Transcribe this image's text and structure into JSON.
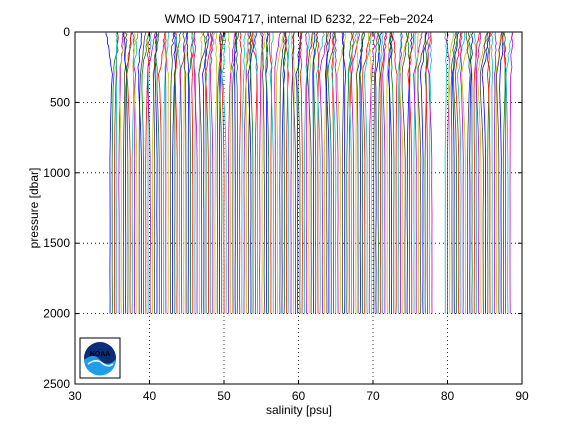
{
  "chart_data": {
    "type": "line",
    "title": "WMO ID 5904717, internal ID 6232, 22−Feb−2024",
    "xlabel": "salinity [psu]",
    "ylabel": "pressure [dbar]",
    "xlim": [
      30,
      90
    ],
    "ylim": [
      2500,
      0
    ],
    "x_ticks": [
      30,
      40,
      50,
      60,
      70,
      80,
      90
    ],
    "y_ticks": [
      0,
      500,
      1000,
      1500,
      2000,
      2500
    ],
    "y_reversed": true,
    "grid": true,
    "legend": "none",
    "profile_count": 180,
    "profile_spacing_psu": 0.3,
    "first_profile_deep_salinity": 34.7,
    "max_pressure": 2000,
    "series_colors": [
      "#0000ff",
      "#008000",
      "#ff0000",
      "#00bfbf",
      "#bf00bf",
      "#bfbf00",
      "#404040"
    ],
    "gaps_psu": [
      [
        78.2,
        79.6
      ]
    ],
    "logo": {
      "text": "NOAA",
      "position": "lower-left"
    }
  }
}
